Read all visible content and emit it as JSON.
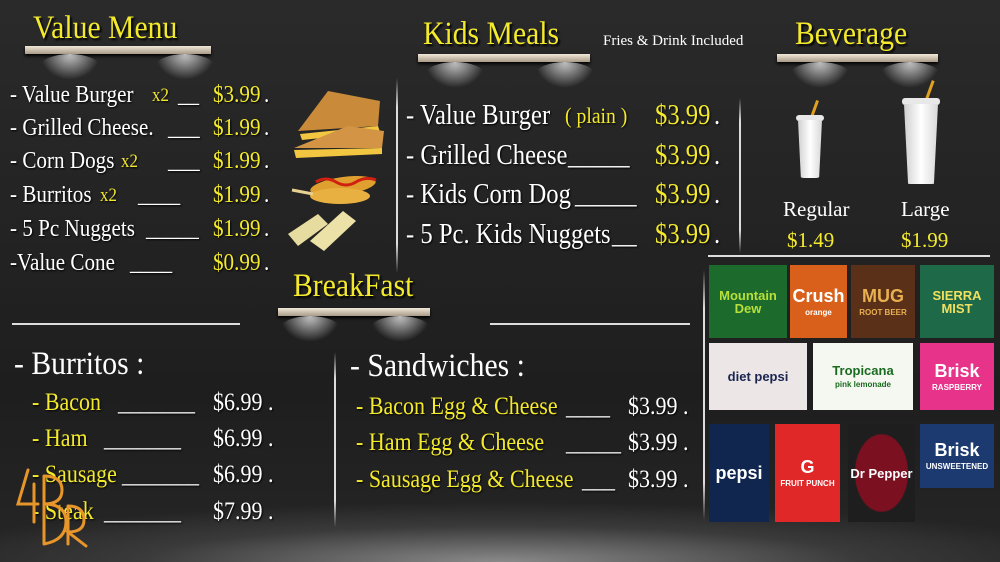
{
  "value_menu": {
    "title": "Value Menu",
    "items": [
      {
        "name": "- Value Burger",
        "qty": "x2",
        "line": "__",
        "price": "$3.99",
        "dot": "."
      },
      {
        "name": "- Grilled Cheese.",
        "qty": "",
        "line": "___",
        "price": "$1.99",
        "dot": "."
      },
      {
        "name": "- Corn Dogs",
        "qty": "x2",
        "line": "___",
        "price": "$1.99",
        "dot": "."
      },
      {
        "name": "- Burritos",
        "qty": "x2",
        "line": "____",
        "price": "$1.99",
        "dot": "."
      },
      {
        "name": "- 5 Pc Nuggets",
        "qty": "",
        "line": "_____",
        "price": "$1.99",
        "dot": "."
      },
      {
        "name": "-Value Cone",
        "qty": "",
        "line": "____",
        "price": "$0.99",
        "dot": "."
      }
    ]
  },
  "kids_meals": {
    "title": "Kids Meals",
    "note": "Fries & Drink Included",
    "items": [
      {
        "name": "- Value Burger",
        "qty": "( plain )",
        "line": "",
        "price": "$3.99",
        "dot": "."
      },
      {
        "name": "- Grilled Cheese",
        "qty": "",
        "line": "_____",
        "price": "$3.99",
        "dot": "."
      },
      {
        "name": "- Kids Corn Dog",
        "qty": "",
        "line": "_____",
        "price": "$3.99",
        "dot": "."
      },
      {
        "name": "- 5 Pc. Kids Nuggets",
        "qty": "",
        "line": "__",
        "price": "$3.99",
        "dot": "."
      }
    ]
  },
  "beverage": {
    "title": "Beverage",
    "sizes": [
      {
        "label": "Regular",
        "price": "$1.49"
      },
      {
        "label": "Large",
        "price": "$1.99"
      }
    ],
    "brands": [
      {
        "name": "Mountain Dew",
        "bg": "#1d6b2c",
        "fg": "#b8e03a"
      },
      {
        "name": "Crush",
        "sub": "orange",
        "bg": "#d8601a",
        "fg": "#fff"
      },
      {
        "name": "MUG",
        "sub": "ROOT BEER",
        "bg": "#5a3018",
        "fg": "#e8b050"
      },
      {
        "name": "SIERRA MIST",
        "bg": "#1e6a48",
        "fg": "#f0e060"
      },
      {
        "name": "diet pepsi",
        "bg": "#ece6e6",
        "fg": "#1a2550"
      },
      {
        "name": "Tropicana",
        "sub": "pink lemonade",
        "bg": "#f4f8f0",
        "fg": "#1a6a20"
      },
      {
        "name": "Brisk",
        "sub": "RASPBERRY",
        "bg": "#e8338a",
        "fg": "#fff"
      },
      {
        "name": "pepsi",
        "bg": "#10264e",
        "fg": "#fff"
      },
      {
        "name": "G",
        "sub": "FRUIT PUNCH",
        "bg": "#e02828",
        "fg": "#fff"
      },
      {
        "name": "Dr Pepper",
        "bg": "#1e1e1e",
        "fg": "#fff"
      },
      {
        "name": "Brisk",
        "sub": "UNSWEETENED",
        "bg": "#1c3a70",
        "fg": "#fff"
      }
    ]
  },
  "breakfast": {
    "title": "BreakFast",
    "burritos": {
      "heading": "- Burritos :",
      "items": [
        {
          "name": "- Bacon",
          "line": "_______",
          "price": "$6.99",
          "dot": "."
        },
        {
          "name": "- Ham",
          "line": "_______",
          "price": "$6.99",
          "dot": "."
        },
        {
          "name": "- Sausage",
          "line": "_______",
          "price": "$6.99",
          "dot": "."
        },
        {
          "name": "- Steak",
          "line": "_______",
          "price": "$7.99",
          "dot": "."
        }
      ]
    },
    "sandwiches": {
      "heading": "- Sandwiches :",
      "items": [
        {
          "name": "- Bacon Egg & Cheese",
          "line": "____",
          "price": "$3.99",
          "dot": "."
        },
        {
          "name": "- Ham Egg & Cheese",
          "line": "_____",
          "price": "$3.99",
          "dot": "."
        },
        {
          "name": "- Sausage Egg & Cheese",
          "line": "___",
          "price": "$3.99",
          "dot": "."
        }
      ]
    }
  },
  "colors": {
    "accent": "#f4ea2c",
    "logo": "#e8962a"
  }
}
